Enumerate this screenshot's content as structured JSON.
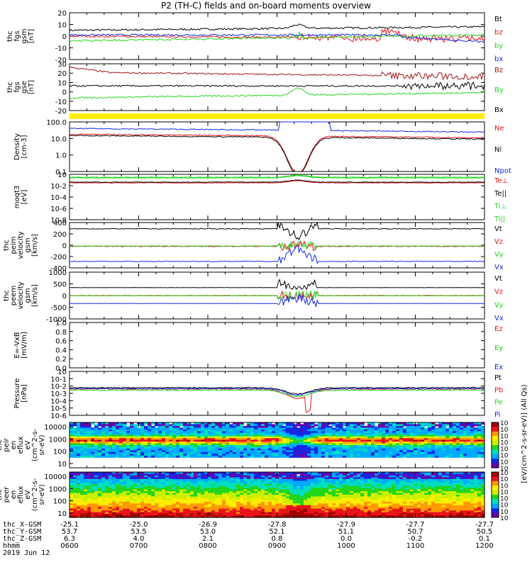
{
  "title": "P2 (TH-C) fields and on-board moments overview",
  "colors": {
    "black": "#000000",
    "red": "#e8141a",
    "green": "#22d61e",
    "blue": "#1428e6",
    "darkred": "#a0141a",
    "yellow": "#ffee00"
  },
  "chart_data": [
    {
      "type": "line",
      "id": "fgs_gsm",
      "ylabel": [
        "thc",
        "fgs",
        "gsm",
        "[nT]"
      ],
      "ylim": [
        -20,
        20
      ],
      "yticks": [
        20,
        10,
        0,
        -10,
        -20
      ],
      "series": [
        {
          "name": "Bt",
          "color": "black",
          "level": 5
        },
        {
          "name": "bz",
          "color": "red",
          "level": 0
        },
        {
          "name": "by",
          "color": "green",
          "level": -4
        },
        {
          "name": "bx",
          "color": "blue",
          "level": 1
        }
      ]
    },
    {
      "type": "line",
      "id": "fgs_gse",
      "ylabel": [
        "thc",
        "fgs",
        "gse",
        "[nT]"
      ],
      "ylim": [
        -25,
        30
      ],
      "yticks": [
        30,
        20,
        10,
        0,
        -10,
        -20
      ],
      "series": [
        {
          "name": "Bz",
          "color": "darkred",
          "level": 20
        },
        {
          "name": "By",
          "color": "green",
          "level": -10
        },
        {
          "name": "Bx",
          "color": "black",
          "level": 4
        }
      ]
    },
    {
      "type": "line",
      "id": "density",
      "ylabel": [
        "Density",
        "[cm-3]"
      ],
      "scale": "log",
      "ylim": [
        0.1,
        100
      ],
      "yticks": [
        "100.0",
        "10.0",
        "1.0",
        "0.1"
      ],
      "series": [
        {
          "name": "Ne",
          "color": "red"
        },
        {
          "name": "Ni",
          "color": "black"
        },
        {
          "name": "Npot",
          "color": "blue"
        }
      ]
    },
    {
      "type": "line",
      "id": "temperature",
      "ylabel": [
        "moqt3",
        "[eV]"
      ],
      "scale": "log",
      "yticks": [
        "10",
        "10-2",
        "10-4",
        "10-6",
        "10-8"
      ],
      "series": [
        {
          "name": "Te⊥",
          "color": "red"
        },
        {
          "name": "Te||",
          "color": "black"
        },
        {
          "name": "Ti⊥",
          "color": "green"
        },
        {
          "name": "Ti||",
          "color": "green"
        }
      ]
    },
    {
      "type": "line",
      "id": "peim_velocity",
      "ylabel": [
        "thc",
        "peim",
        "velocity",
        "gsm",
        "[km/s]"
      ],
      "ylim": [
        -400,
        400
      ],
      "yticks": [
        400,
        200,
        0,
        -200,
        -400
      ],
      "series": [
        {
          "name": "Vt",
          "color": "black",
          "level": 290
        },
        {
          "name": "Vz",
          "color": "red",
          "level": -20
        },
        {
          "name": "Vy",
          "color": "green",
          "level": -15
        },
        {
          "name": "Vx",
          "color": "blue",
          "level": -285
        }
      ]
    },
    {
      "type": "line",
      "id": "peem_velocity",
      "ylabel": [
        "thc",
        "peem",
        "velocity",
        "gsm",
        "[km/s]"
      ],
      "ylim": [
        -1000,
        1000
      ],
      "yticks": [
        1000,
        500,
        0,
        -500,
        -1000
      ],
      "series": [
        {
          "name": "Vt",
          "color": "black",
          "level": 340
        },
        {
          "name": "Vz",
          "color": "red",
          "level": 0
        },
        {
          "name": "Vy",
          "color": "green",
          "level": -10
        },
        {
          "name": "Vx",
          "color": "blue",
          "level": -340
        }
      ]
    },
    {
      "type": "line",
      "id": "efield",
      "ylabel": [
        "E=-VxB",
        "[mV/m]"
      ],
      "ylim": [
        0,
        1
      ],
      "yticks": [
        "1.0",
        "0.8",
        "0.6",
        "0.4",
        "0.2",
        "0.0"
      ],
      "series": [
        {
          "name": "Ez",
          "color": "red"
        },
        {
          "name": "Ey",
          "color": "green"
        },
        {
          "name": "Ex",
          "color": "blue"
        }
      ]
    },
    {
      "type": "line",
      "id": "pressure",
      "ylabel": [
        "Pressure",
        "[nPa]"
      ],
      "scale": "log",
      "yticks": [
        "10",
        "10-1",
        "10-2",
        "10-3",
        "10-4",
        "10-5",
        "10-6"
      ],
      "series": [
        {
          "name": "Pt",
          "color": "black"
        },
        {
          "name": "Pb",
          "color": "red"
        },
        {
          "name": "Pe",
          "color": "green"
        },
        {
          "name": "Pi",
          "color": "blue"
        }
      ]
    },
    {
      "type": "heatmap",
      "id": "peir_spec",
      "ylabel": [
        "thc",
        "peir",
        "en",
        "eflux",
        "eV",
        "(cm^2-s-",
        "sr-eV)"
      ],
      "scale": "log",
      "yticks": [
        10000,
        1000,
        100,
        10
      ]
    },
    {
      "type": "heatmap",
      "id": "peer_spec",
      "ylabel": [
        "thc",
        "peer",
        "en",
        "eflux",
        "eV",
        "(cm^2-s-",
        "sr-eV)"
      ],
      "scale": "log",
      "yticks": [
        10000,
        1000,
        100,
        10
      ]
    }
  ],
  "colorbar": {
    "label": "[eV/(cm^2-s-sr-eV)] (All Qs)",
    "top_ticks": [
      "10",
      "10",
      "10",
      "10",
      "10",
      "10",
      "10",
      "10"
    ],
    "bottom_ticks": [
      "10",
      "10",
      "10",
      "10",
      "10",
      "10",
      "10",
      "10"
    ]
  },
  "xaxis": {
    "rows": [
      {
        "label": "thc_X-GSM",
        "values": [
          "-25.1",
          "-25.0",
          "-26.9",
          "-27.8",
          "-27.9",
          "-27.7",
          "-27.7"
        ]
      },
      {
        "label": "thc_Y-GSM",
        "values": [
          "53.7",
          "53.5",
          "53.0",
          "52.1",
          "51.1",
          "50.7",
          "50.5"
        ]
      },
      {
        "label": "thc_Z-GSM",
        "values": [
          "6.3",
          "4.0",
          "2.1",
          "0.8",
          "0.0",
          "-0.2",
          "0.1"
        ]
      },
      {
        "label": "hhmm",
        "values": [
          "0600",
          "0700",
          "0800",
          "0900",
          "1000",
          "1100",
          "1200"
        ]
      }
    ],
    "date": "2019 Jun 12"
  }
}
